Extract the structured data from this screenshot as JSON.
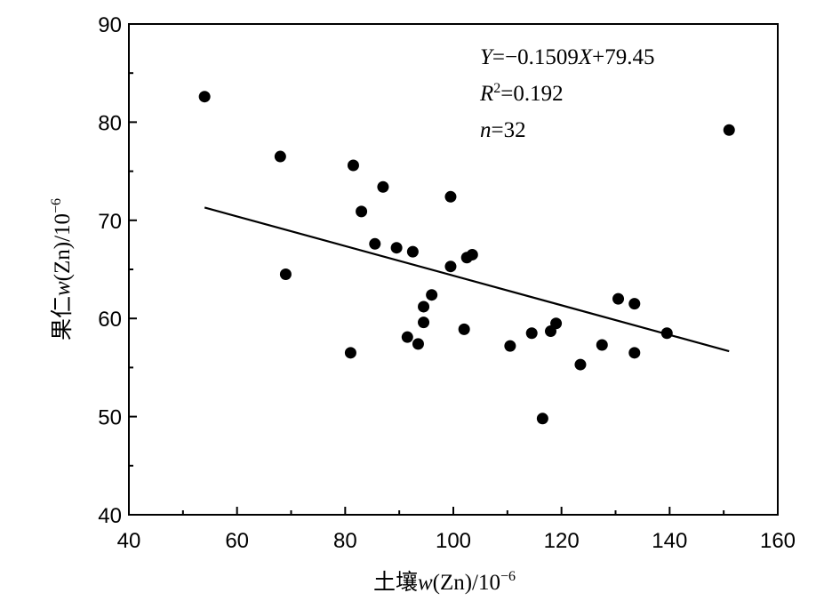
{
  "chart_data": {
    "type": "scatter",
    "xlabel": "土壤w(Zn)/10⁻⁶",
    "ylabel": "果仁w(Zn)/10⁻⁶",
    "xlabel_parts": [
      "土壤",
      "w",
      "(Zn)/10",
      "−6"
    ],
    "ylabel_parts": [
      "果仁",
      "w",
      "(Zn)/10",
      "−6"
    ],
    "xlim": [
      40,
      160
    ],
    "ylim": [
      40,
      90
    ],
    "x_ticks": [
      40,
      60,
      80,
      100,
      120,
      140,
      160
    ],
    "y_ticks": [
      40,
      50,
      60,
      70,
      80,
      90
    ],
    "x_tick_labels": [
      "40",
      "60",
      "80",
      "100",
      "120",
      "140",
      "160"
    ],
    "y_tick_labels": [
      "40",
      "50",
      "60",
      "70",
      "80",
      "90"
    ],
    "annotations": {
      "equation_parts": [
        "Y",
        "=−0.1509",
        "X",
        "+79.45"
      ],
      "r2_parts": [
        "R",
        "2",
        "=0.192"
      ],
      "n_parts": [
        "n",
        "=32"
      ]
    },
    "regression": {
      "slope": -0.1509,
      "intercept": 79.45,
      "x_range": [
        54,
        151
      ]
    },
    "points": [
      {
        "x": 54,
        "y": 82.6
      },
      {
        "x": 68,
        "y": 76.5
      },
      {
        "x": 69,
        "y": 64.5
      },
      {
        "x": 81,
        "y": 56.5
      },
      {
        "x": 81.5,
        "y": 75.6
      },
      {
        "x": 83,
        "y": 70.9
      },
      {
        "x": 85.5,
        "y": 67.6
      },
      {
        "x": 87,
        "y": 73.4
      },
      {
        "x": 89.5,
        "y": 67.2
      },
      {
        "x": 91.5,
        "y": 58.1
      },
      {
        "x": 92.5,
        "y": 66.8
      },
      {
        "x": 93.5,
        "y": 57.4
      },
      {
        "x": 94.5,
        "y": 61.2
      },
      {
        "x": 94.5,
        "y": 59.6
      },
      {
        "x": 96,
        "y": 62.4
      },
      {
        "x": 99.5,
        "y": 65.3
      },
      {
        "x": 99.5,
        "y": 72.4
      },
      {
        "x": 102,
        "y": 58.9
      },
      {
        "x": 102.5,
        "y": 66.2
      },
      {
        "x": 103.5,
        "y": 66.5
      },
      {
        "x": 110.5,
        "y": 57.2
      },
      {
        "x": 114.5,
        "y": 58.5
      },
      {
        "x": 116.5,
        "y": 49.8
      },
      {
        "x": 118,
        "y": 58.7
      },
      {
        "x": 119,
        "y": 59.5
      },
      {
        "x": 123.5,
        "y": 55.3
      },
      {
        "x": 127.5,
        "y": 57.3
      },
      {
        "x": 130.5,
        "y": 62.0
      },
      {
        "x": 133.5,
        "y": 56.5
      },
      {
        "x": 133.5,
        "y": 61.5
      },
      {
        "x": 139.5,
        "y": 58.5
      },
      {
        "x": 151,
        "y": 79.2
      }
    ]
  }
}
